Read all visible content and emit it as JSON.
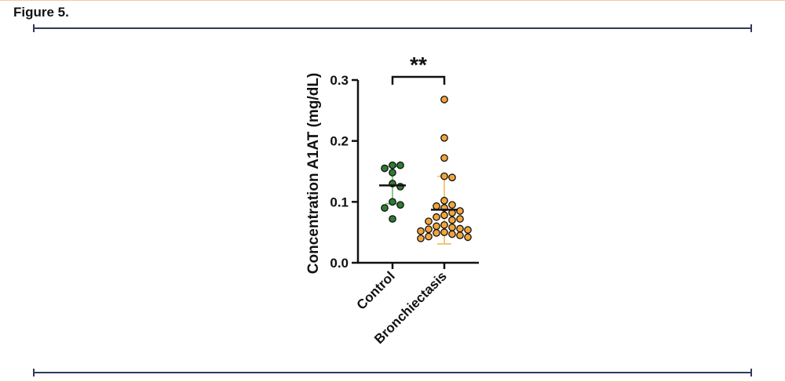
{
  "figure": {
    "label": "Figure 5."
  },
  "colors": {
    "control": "#2e7d32",
    "bronchiectasis": "#f4a53a",
    "control_whisker": "#7bc67e",
    "bronchiectasis_whisker": "#f3c271",
    "axis": "#111111"
  },
  "chart_data": {
    "type": "scatter",
    "xlabel": "",
    "ylabel": "Concentration A1AT (mg/dL)",
    "ylim": [
      0,
      0.3
    ],
    "yticks": [
      0.0,
      0.1,
      0.2,
      0.3
    ],
    "ytick_labels": [
      "0.0",
      "0.1",
      "0.2",
      "0.3"
    ],
    "categories": [
      "Control",
      "Bronchiectasis"
    ],
    "series": [
      {
        "name": "Control",
        "values": [
          0.16,
          0.16,
          0.155,
          0.148,
          0.13,
          0.125,
          0.1,
          0.095,
          0.09,
          0.072
        ],
        "mean": 0.127,
        "sd": [
          0.097,
          0.158
        ]
      },
      {
        "name": "Bronchiectasis",
        "values": [
          0.268,
          0.205,
          0.172,
          0.142,
          0.14,
          0.102,
          0.095,
          0.093,
          0.09,
          0.085,
          0.082,
          0.078,
          0.075,
          0.072,
          0.07,
          0.068,
          0.062,
          0.06,
          0.058,
          0.056,
          0.055,
          0.054,
          0.052,
          0.05,
          0.049,
          0.047,
          0.045,
          0.043,
          0.042,
          0.04
        ],
        "mean": 0.087,
        "sd": [
          0.031,
          0.142
        ]
      }
    ],
    "annotations": [
      {
        "text": "**",
        "between": [
          "Control",
          "Bronchiectasis"
        ]
      }
    ],
    "grid": false,
    "legend": "none"
  }
}
